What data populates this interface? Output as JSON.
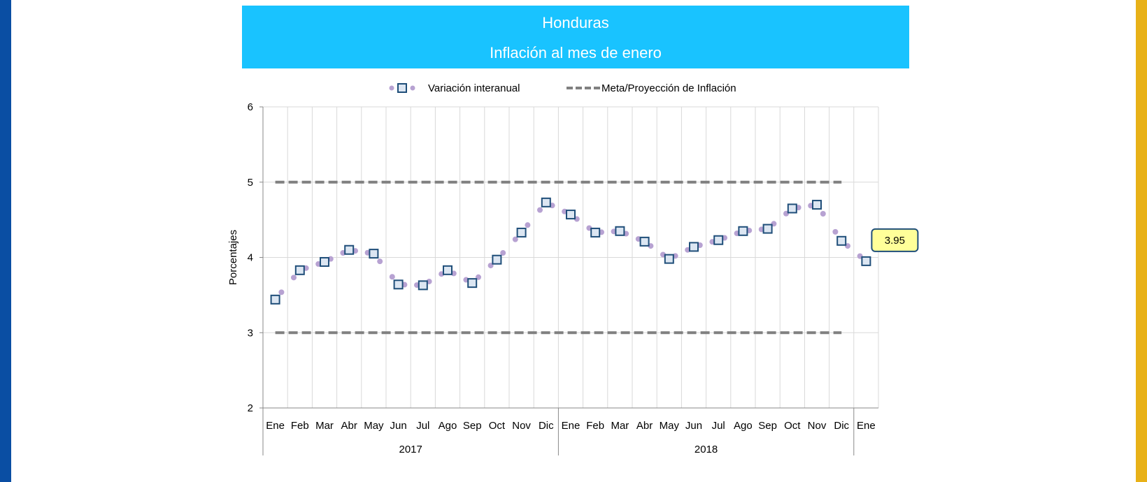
{
  "header": {
    "country": "Honduras",
    "subtitle": "Inflación al mes de enero"
  },
  "colors": {
    "banner": "#19c3ff",
    "left_stripe": "#0a4ea3",
    "right_stripe": "#e8b118",
    "series_line": "#b7a2d2",
    "series_marker_border": "#1f4e79",
    "target_line": "#808080",
    "callout_fill": "#ffff99",
    "callout_border": "#1f4e79"
  },
  "chart_data": {
    "type": "line",
    "title": "",
    "xlabel": "",
    "ylabel": "Porcentajes",
    "ylim": [
      2,
      6
    ],
    "y_ticks": [
      "2",
      "3",
      "4",
      "5",
      "6"
    ],
    "categories": [
      "Ene",
      "Feb",
      "Mar",
      "Abr",
      "May",
      "Jun",
      "Jul",
      "Ago",
      "Sep",
      "Oct",
      "Nov",
      "Dic",
      "Ene",
      "Feb",
      "Mar",
      "Abr",
      "May",
      "Jun",
      "Jul",
      "Ago",
      "Sep",
      "Oct",
      "Nov",
      "Dic",
      "Ene"
    ],
    "year_groups": [
      {
        "label": "2017",
        "start": 0,
        "end": 11
      },
      {
        "label": "2018",
        "start": 12,
        "end": 23
      }
    ],
    "legend_position": "top-center",
    "grid": true,
    "series": [
      {
        "name": "Variación interanual",
        "style": "dotted-with-square-markers",
        "values": [
          3.44,
          3.83,
          3.94,
          4.1,
          4.05,
          3.64,
          3.63,
          3.83,
          3.66,
          3.97,
          4.33,
          4.73,
          4.57,
          4.33,
          4.35,
          4.21,
          3.98,
          4.14,
          4.23,
          4.35,
          4.38,
          4.65,
          4.7,
          4.22,
          3.95
        ]
      },
      {
        "name": "Meta/Proyección de Inflación",
        "style": "dashed",
        "bands": [
          {
            "label": "upper",
            "value": 5
          },
          {
            "label": "lower",
            "value": 3
          }
        ],
        "x_range": [
          0,
          23
        ]
      }
    ],
    "annotation": {
      "label": "3.95",
      "index": 24
    }
  }
}
